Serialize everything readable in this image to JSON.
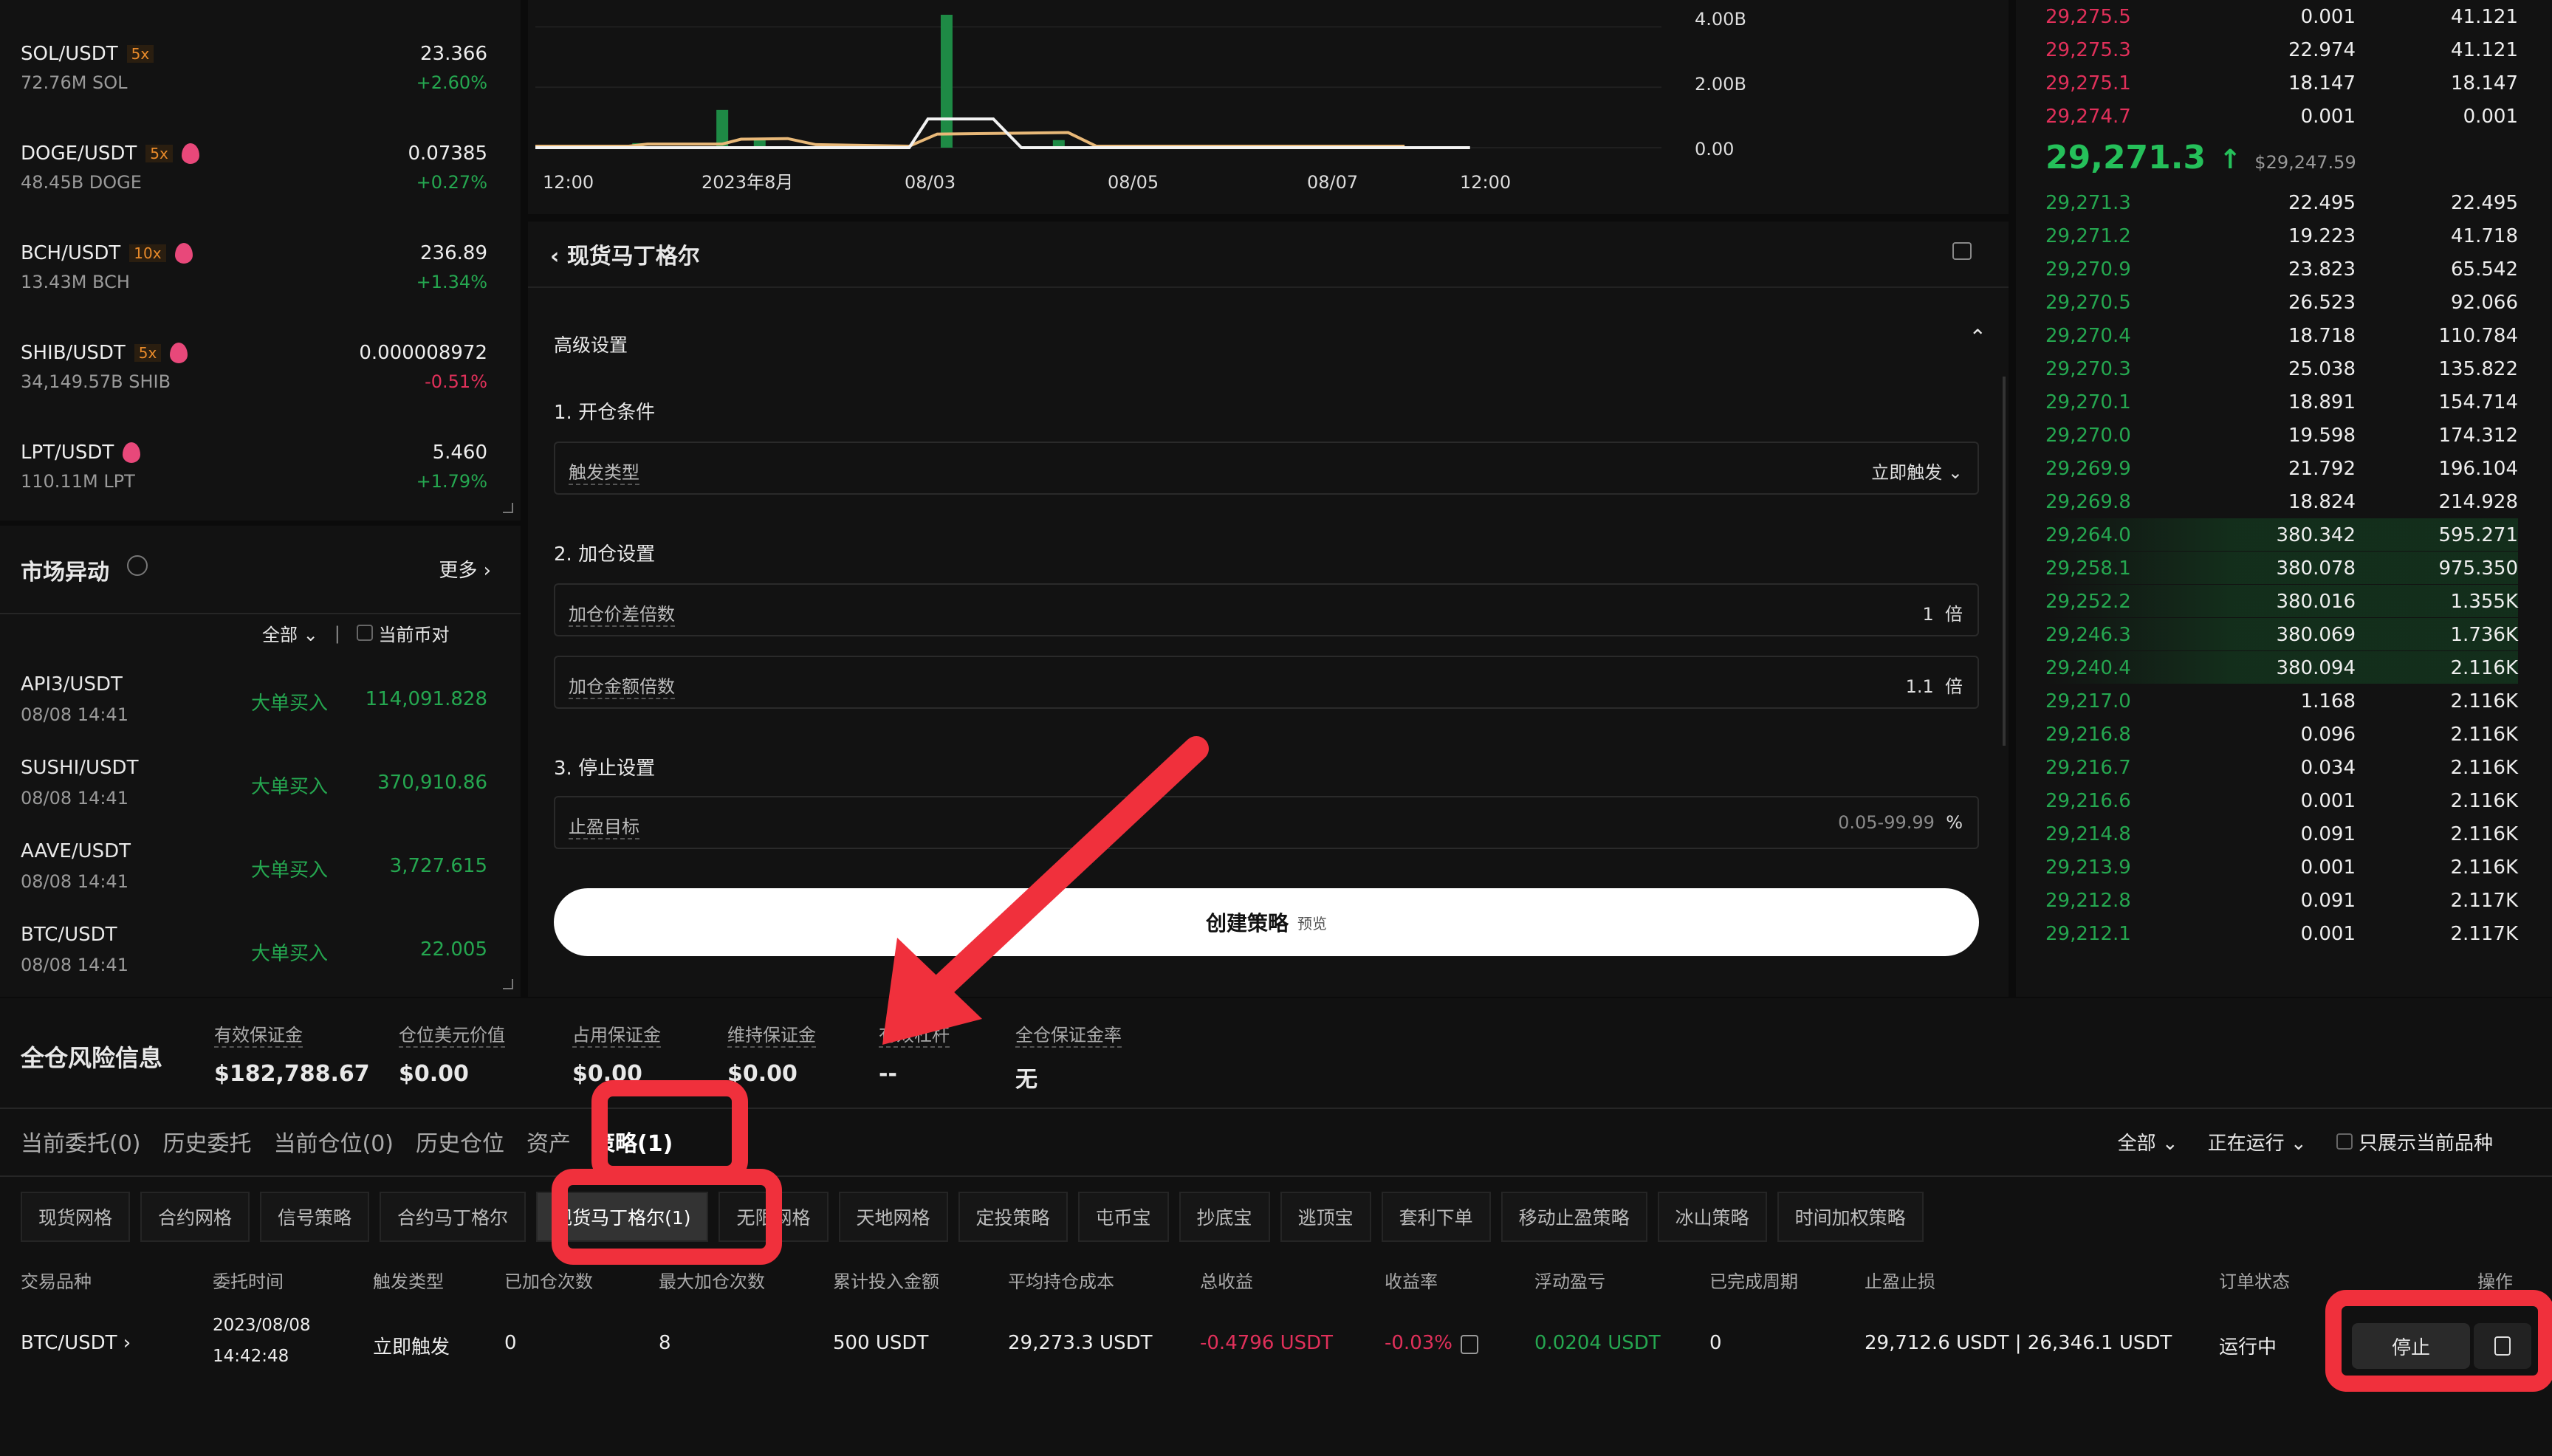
{
  "tickers": [
    {
      "pair": "SOL/USDT",
      "leverage": "5x",
      "hot": false,
      "volume": "72.76M SOL",
      "price": "23.366",
      "change": "+2.60%",
      "dir": "up"
    },
    {
      "pair": "DOGE/USDT",
      "leverage": "5x",
      "hot": true,
      "volume": "48.45B DOGE",
      "price": "0.07385",
      "change": "+0.27%",
      "dir": "up"
    },
    {
      "pair": "BCH/USDT",
      "leverage": "10x",
      "hot": true,
      "volume": "13.43M BCH",
      "price": "236.89",
      "change": "+1.34%",
      "dir": "up"
    },
    {
      "pair": "SHIB/USDT",
      "leverage": "5x",
      "hot": true,
      "volume": "34,149.57B SHIB",
      "price": "0.000008972",
      "change": "-0.51%",
      "dir": "down"
    },
    {
      "pair": "LPT/USDT",
      "leverage": "",
      "hot": true,
      "volume": "110.11M LPT",
      "price": "5.460",
      "change": "+1.79%",
      "dir": "up"
    }
  ],
  "market_moves": {
    "title": "市场异动",
    "more": "更多 ›",
    "filter": "全部",
    "current_pair": "当前币对",
    "rows": [
      {
        "pair": "API3/USDT",
        "time": "08/08 14:41",
        "kind": "大单买入",
        "value": "114,091.828"
      },
      {
        "pair": "SUSHI/USDT",
        "time": "08/08 14:41",
        "kind": "大单买入",
        "value": "370,910.86"
      },
      {
        "pair": "AAVE/USDT",
        "time": "08/08 14:41",
        "kind": "大单买入",
        "value": "3,727.615"
      },
      {
        "pair": "BTC/USDT",
        "time": "08/08 14:41",
        "kind": "大单买入",
        "value": "22.005"
      }
    ]
  },
  "chart": {
    "x_ticks": [
      "12:00",
      "2023年8月",
      "08/03",
      "08/05",
      "08/07",
      "12:00"
    ],
    "y_ticks": [
      "4.00B",
      "2.00B",
      "0.00"
    ],
    "y_max": 4.4,
    "volume_bars": [
      {
        "x": 0.11,
        "v": 0.15
      },
      {
        "x": 0.2,
        "v": 1.25
      },
      {
        "x": 0.24,
        "v": 0.3
      },
      {
        "x": 0.44,
        "v": 4.6
      },
      {
        "x": 0.56,
        "v": 0.25
      }
    ],
    "line_white": [
      [
        0,
        0
      ],
      [
        0.4,
        0
      ],
      [
        0.42,
        0.95
      ],
      [
        0.49,
        0.95
      ],
      [
        0.52,
        0
      ],
      [
        1,
        0
      ]
    ],
    "line_orange": [
      [
        0,
        0.05
      ],
      [
        0.1,
        0.05
      ],
      [
        0.12,
        0.12
      ],
      [
        0.2,
        0.12
      ],
      [
        0.22,
        0.28
      ],
      [
        0.27,
        0.3
      ],
      [
        0.3,
        0.1
      ],
      [
        0.4,
        0.05
      ],
      [
        0.43,
        0.45
      ],
      [
        0.57,
        0.5
      ],
      [
        0.6,
        0.05
      ],
      [
        0.93,
        0.05
      ]
    ],
    "colors": {
      "volume": "#1e8a45",
      "white": "#f2f2f2",
      "orange": "#e8b878"
    }
  },
  "strategy": {
    "title": "现货马丁格尔",
    "advanced": "高级设置",
    "s1": "1. 开仓条件",
    "trigger_label": "触发类型",
    "trigger_value": "立即触发",
    "s2": "2. 加仓设置",
    "price_mult_label": "加仓价差倍数",
    "price_mult_value": "1",
    "mult_unit": "倍",
    "amount_mult_label": "加仓金额倍数",
    "amount_mult_value": "1.1",
    "s3": "3. 停止设置",
    "tp_label": "止盈目标",
    "tp_placeholder": "0.05-99.99",
    "tp_unit": "%",
    "create": "创建策略",
    "create_sub": "预览"
  },
  "orderbook": {
    "asks": [
      [
        "29,275.5",
        "0.001",
        "41.121"
      ],
      [
        "29,275.3",
        "22.974",
        "41.121"
      ],
      [
        "29,275.1",
        "18.147",
        "18.147"
      ],
      [
        "29,274.7",
        "0.001",
        "0.001"
      ]
    ],
    "mid_price": "29,271.3",
    "mid_arrow": "↑",
    "mid_usd": "$29,247.59",
    "bids": [
      [
        "29,271.3",
        "22.495",
        "22.495"
      ],
      [
        "29,271.2",
        "19.223",
        "41.718"
      ],
      [
        "29,270.9",
        "23.823",
        "65.542"
      ],
      [
        "29,270.5",
        "26.523",
        "92.066"
      ],
      [
        "29,270.4",
        "18.718",
        "110.784"
      ],
      [
        "29,270.3",
        "25.038",
        "135.822"
      ],
      [
        "29,270.1",
        "18.891",
        "154.714"
      ],
      [
        "29,270.0",
        "19.598",
        "174.312"
      ],
      [
        "29,269.9",
        "21.792",
        "196.104"
      ],
      [
        "29,269.8",
        "18.824",
        "214.928"
      ],
      [
        "29,264.0",
        "380.342",
        "595.271"
      ],
      [
        "29,258.1",
        "380.078",
        "975.350"
      ],
      [
        "29,252.2",
        "380.016",
        "1.355K"
      ],
      [
        "29,246.3",
        "380.069",
        "1.736K"
      ],
      [
        "29,240.4",
        "380.094",
        "2.116K"
      ],
      [
        "29,217.0",
        "1.168",
        "2.116K"
      ],
      [
        "29,216.8",
        "0.096",
        "2.116K"
      ],
      [
        "29,216.7",
        "0.034",
        "2.116K"
      ],
      [
        "29,216.6",
        "0.001",
        "2.116K"
      ],
      [
        "29,214.8",
        "0.091",
        "2.116K"
      ],
      [
        "29,213.9",
        "0.001",
        "2.116K"
      ],
      [
        "29,212.8",
        "0.091",
        "2.117K"
      ],
      [
        "29,212.1",
        "0.001",
        "2.117K"
      ]
    ],
    "colors": {
      "ask": "#e0305a",
      "bid": "#25a750"
    }
  },
  "risk": {
    "title": "全仓风险信息",
    "items": [
      {
        "label": "有效保证金",
        "value": "$182,788.67"
      },
      {
        "label": "仓位美元价值",
        "value": "$0.00"
      },
      {
        "label": "占用保证金",
        "value": "$0.00"
      },
      {
        "label": "维持保证金",
        "value": "$0.00"
      },
      {
        "label": "有效杠杆",
        "value": "--"
      },
      {
        "label": "全仓保证金率",
        "value": "无"
      }
    ]
  },
  "tabs": [
    "当前委托(0)",
    "历史委托",
    "当前仓位(0)",
    "历史仓位",
    "资产",
    "策略(1)"
  ],
  "active_tab": 5,
  "filters": {
    "all": "全部",
    "status": "正在运行",
    "only_current": "只展示当前品种"
  },
  "subtabs": [
    "现货网格",
    "合约网格",
    "信号策略",
    "合约马丁格尔",
    "现货马丁格尔(1)",
    "无限网格",
    "天地网格",
    "定投策略",
    "屯币宝",
    "抄底宝",
    "逃顶宝",
    "套利下单",
    "移动止盈策略",
    "冰山策略",
    "时间加权策略"
  ],
  "active_subtab": 4,
  "table": {
    "headers": [
      "交易品种",
      "委托时间",
      "触发类型",
      "已加仓次数",
      "最大加仓次数",
      "累计投入金额",
      "平均持仓成本",
      "总收益",
      "收益率",
      "浮动盈亏",
      "已完成周期",
      "止盈止损",
      "订单状态",
      "操作"
    ],
    "row": {
      "pair": "BTC/USDT ›",
      "date": "2023/08/08",
      "time": "14:42:48",
      "trigger": "立即触发",
      "added": "0",
      "max_add": "8",
      "invested": "500 USDT",
      "avg_cost": "29,273.3 USDT",
      "total_pnl": "-0.4796 USDT",
      "yield": "-0.03%",
      "float_pnl": "0.0204 USDT",
      "cycles": "0",
      "tp_sl": "29,712.6 USDT | 26,346.1 USDT",
      "status": "运行中",
      "stop": "停止"
    }
  },
  "annotation_color": "#f0303c"
}
